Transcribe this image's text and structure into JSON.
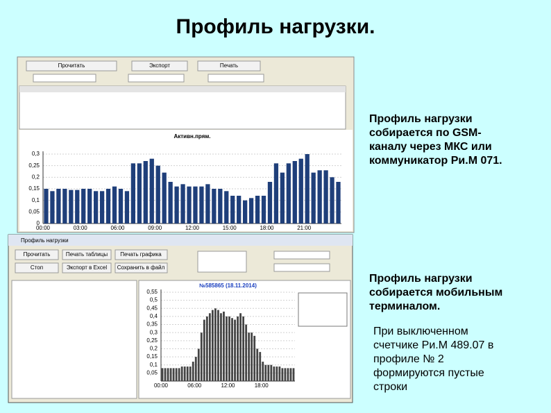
{
  "title": "Профиль нагрузки.",
  "paragraphs": [
    "Профиль нагрузки собирается по GSM-каналу через МКС или коммуникатор Ри.М 071.",
    "Профиль нагрузки собирается мобильным терминалом.",
    "При выключенном счетчике Ри.М 489.07 в профиле № 2 формируются пустые строки"
  ],
  "screenshot1": {
    "buttons": [
      "Прочитать",
      "Экспорт",
      "Печать"
    ]
  },
  "screenshot2": {
    "window_title": "Профиль нагрузки",
    "buttons": [
      "Прочитать",
      "Печать таблицы",
      "Печать графика",
      "Стоп",
      "Экспорт в Excel",
      "Сохранить в файл"
    ]
  },
  "chart_data": [
    {
      "type": "bar",
      "title": "Активн.прям.",
      "categories": [
        "00:00",
        null,
        null,
        null,
        null,
        null,
        "03:00",
        null,
        null,
        null,
        null,
        null,
        "06:00",
        null,
        null,
        null,
        null,
        null,
        "09:00",
        null,
        null,
        null,
        null,
        null,
        "12:00",
        null,
        null,
        null,
        null,
        null,
        "15:00",
        null,
        null,
        null,
        null,
        null,
        "18:00",
        null,
        null,
        null,
        null,
        null,
        "21:00",
        null,
        null,
        null,
        null,
        null
      ],
      "values": [
        0.15,
        0.14,
        0.15,
        0.15,
        0.145,
        0.145,
        0.15,
        0.15,
        0.14,
        0.14,
        0.15,
        0.16,
        0.15,
        0.14,
        0.26,
        0.26,
        0.27,
        0.28,
        0.25,
        0.22,
        0.18,
        0.16,
        0.17,
        0.16,
        0.16,
        0.16,
        0.17,
        0.15,
        0.15,
        0.14,
        0.12,
        0.12,
        0.1,
        0.11,
        0.12,
        0.12,
        0.18,
        0.26,
        0.22,
        0.26,
        0.27,
        0.28,
        0.3,
        0.22,
        0.23,
        0.23,
        0.2,
        0.18
      ],
      "color": "#1f3f7a",
      "ylim": [
        0,
        0.3
      ],
      "yticks": [
        0,
        {
          "value": 0.05,
          "label": "0,05"
        },
        {
          "value": 0.1,
          "label": "0,1"
        },
        {
          "value": 0.15,
          "label": "0,15"
        },
        {
          "value": 0.2,
          "label": "0,2"
        },
        {
          "value": 0.25,
          "label": "0,25"
        },
        {
          "value": 0.3,
          "label": "0,3"
        }
      ],
      "grid": true
    },
    {
      "type": "bar",
      "title": "№585865 (18.11.2014)",
      "categories": [
        "00:00",
        null,
        null,
        null,
        null,
        null,
        null,
        null,
        null,
        null,
        null,
        null,
        "06:00",
        null,
        null,
        null,
        null,
        null,
        null,
        null,
        null,
        null,
        null,
        null,
        "12:00",
        null,
        null,
        null,
        null,
        null,
        null,
        null,
        null,
        null,
        null,
        null,
        "18:00",
        null,
        null,
        null,
        null,
        null,
        null,
        null,
        null,
        null,
        null,
        null
      ],
      "values": [
        0.08,
        0.08,
        0.08,
        0.08,
        0.08,
        0.08,
        0.08,
        0.09,
        0.09,
        0.09,
        0.09,
        0.12,
        0.15,
        0.2,
        0.3,
        0.38,
        0.4,
        0.42,
        0.44,
        0.45,
        0.44,
        0.42,
        0.43,
        0.4,
        0.4,
        0.39,
        0.38,
        0.4,
        0.42,
        0.4,
        0.35,
        0.3,
        0.3,
        0.28,
        0.2,
        0.18,
        0.12,
        0.1,
        0.1,
        0.1,
        0.09,
        0.09,
        0.09,
        0.08,
        0.08,
        0.08,
        0.08,
        0.08
      ],
      "color": "#444444",
      "ylim": [
        0,
        0.55
      ],
      "yticks": [
        {
          "value": 0.05,
          "label": "0,05"
        },
        {
          "value": 0.1,
          "label": "0,1"
        },
        {
          "value": 0.15,
          "label": "0,15"
        },
        {
          "value": 0.2,
          "label": "0,2"
        },
        {
          "value": 0.25,
          "label": "0,25"
        },
        {
          "value": 0.3,
          "label": "0,3"
        },
        {
          "value": 0.35,
          "label": "0,35"
        },
        {
          "value": 0.4,
          "label": "0,4"
        },
        {
          "value": 0.45,
          "label": "0,45"
        },
        {
          "value": 0.5,
          "label": "0,5"
        },
        {
          "value": 0.55,
          "label": "0,55"
        }
      ],
      "grid": true
    }
  ]
}
